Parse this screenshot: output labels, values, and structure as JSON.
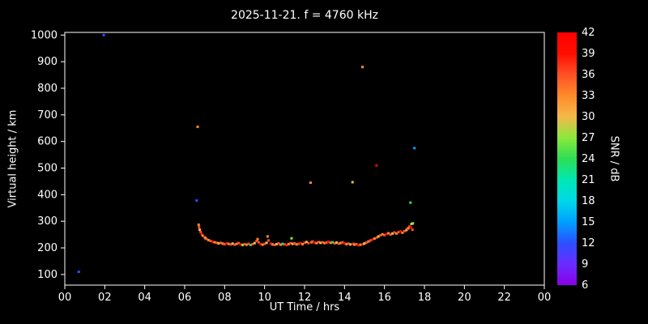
{
  "colors": {
    "background": "#000000",
    "foreground": "#ffffff"
  },
  "chart_data": {
    "type": "scatter",
    "title": "2025-11-21. f = 4760 kHz",
    "xlabel": "UT Time / hrs",
    "ylabel": "Virtual height / km",
    "colorbar_label": "SNR / dB",
    "xlim": [
      0,
      24
    ],
    "ylim": [
      60,
      1010
    ],
    "grid": false,
    "x_ticks": [
      {
        "v": 0,
        "label": "00"
      },
      {
        "v": 2,
        "label": "02"
      },
      {
        "v": 4,
        "label": "04"
      },
      {
        "v": 6,
        "label": "06"
      },
      {
        "v": 8,
        "label": "08"
      },
      {
        "v": 10,
        "label": "10"
      },
      {
        "v": 12,
        "label": "12"
      },
      {
        "v": 14,
        "label": "14"
      },
      {
        "v": 16,
        "label": "16"
      },
      {
        "v": 18,
        "label": "18"
      },
      {
        "v": 20,
        "label": "20"
      },
      {
        "v": 22,
        "label": "22"
      },
      {
        "v": 24,
        "label": "00"
      }
    ],
    "y_ticks": [
      100,
      200,
      300,
      400,
      500,
      600,
      700,
      800,
      900,
      1000
    ],
    "colorbar": {
      "min": 6,
      "max": 42,
      "ticks": [
        6,
        9,
        12,
        15,
        18,
        21,
        24,
        27,
        30,
        33,
        36,
        39,
        42
      ],
      "stops": [
        {
          "v": 6,
          "c": "#8a00e6"
        },
        {
          "v": 9,
          "c": "#6a2bff"
        },
        {
          "v": 12,
          "c": "#2b50ff"
        },
        {
          "v": 15,
          "c": "#00a0ff"
        },
        {
          "v": 18,
          "c": "#00d8e8"
        },
        {
          "v": 21,
          "c": "#00e8b4"
        },
        {
          "v": 24,
          "c": "#2ede55"
        },
        {
          "v": 27,
          "c": "#8ce83c"
        },
        {
          "v": 30,
          "c": "#f4b84a"
        },
        {
          "v": 33,
          "c": "#ff8a2a"
        },
        {
          "v": 36,
          "c": "#ff5026"
        },
        {
          "v": 39,
          "c": "#ff0e00"
        },
        {
          "v": 42,
          "c": "#ff0000"
        }
      ]
    },
    "points_format": [
      "ut_hours",
      "virtual_height_km",
      "snr_db"
    ],
    "points": [
      [
        0.7,
        110,
        12
      ],
      [
        1.95,
        1000,
        12
      ],
      [
        6.6,
        378,
        12
      ],
      [
        6.65,
        655,
        33
      ],
      [
        12.3,
        445,
        33
      ],
      [
        14.4,
        447,
        30
      ],
      [
        14.9,
        880,
        33
      ],
      [
        15.6,
        510,
        42
      ],
      [
        17.3,
        370,
        24
      ],
      [
        17.5,
        575,
        15
      ],
      [
        6.7,
        287,
        33
      ],
      [
        6.72,
        278,
        36
      ],
      [
        6.75,
        268,
        30
      ],
      [
        6.8,
        260,
        36
      ],
      [
        6.85,
        252,
        39
      ],
      [
        6.9,
        246,
        33
      ],
      [
        7.0,
        240,
        36
      ],
      [
        7.05,
        236,
        30
      ],
      [
        7.1,
        233,
        36
      ],
      [
        7.2,
        229,
        33
      ],
      [
        7.3,
        226,
        36
      ],
      [
        7.4,
        223,
        39
      ],
      [
        7.5,
        221,
        33
      ],
      [
        7.6,
        219,
        36
      ],
      [
        7.7,
        217,
        30
      ],
      [
        7.8,
        219,
        36
      ],
      [
        7.9,
        216,
        33
      ],
      [
        8.0,
        214,
        36
      ],
      [
        8.1,
        217,
        39
      ],
      [
        8.2,
        215,
        33
      ],
      [
        8.3,
        213,
        36
      ],
      [
        8.4,
        216,
        30
      ],
      [
        8.5,
        212,
        36
      ],
      [
        8.6,
        215,
        33
      ],
      [
        8.7,
        218,
        36
      ],
      [
        8.8,
        213,
        39
      ],
      [
        8.9,
        211,
        27
      ],
      [
        9.0,
        214,
        36
      ],
      [
        9.1,
        212,
        33
      ],
      [
        9.2,
        215,
        36
      ],
      [
        9.3,
        211,
        24
      ],
      [
        9.4,
        214,
        36
      ],
      [
        9.5,
        218,
        30
      ],
      [
        9.6,
        226,
        36
      ],
      [
        9.65,
        233,
        33
      ],
      [
        9.7,
        221,
        36
      ],
      [
        9.8,
        214,
        39
      ],
      [
        9.9,
        212,
        33
      ],
      [
        10.0,
        215,
        36
      ],
      [
        10.1,
        219,
        30
      ],
      [
        10.15,
        243,
        33
      ],
      [
        10.2,
        228,
        36
      ],
      [
        10.3,
        216,
        39
      ],
      [
        10.4,
        213,
        33
      ],
      [
        10.5,
        211,
        36
      ],
      [
        10.6,
        214,
        30
      ],
      [
        10.7,
        217,
        36
      ],
      [
        10.8,
        212,
        33
      ],
      [
        10.9,
        215,
        21
      ],
      [
        11.0,
        213,
        36
      ],
      [
        11.1,
        211,
        39
      ],
      [
        11.2,
        214,
        33
      ],
      [
        11.3,
        218,
        36
      ],
      [
        11.35,
        236,
        27
      ],
      [
        11.4,
        215,
        30
      ],
      [
        11.5,
        217,
        36
      ],
      [
        11.6,
        213,
        33
      ],
      [
        11.7,
        215,
        36
      ],
      [
        11.8,
        218,
        39
      ],
      [
        11.9,
        214,
        33
      ],
      [
        12.0,
        219,
        36
      ],
      [
        12.1,
        222,
        30
      ],
      [
        12.2,
        218,
        36
      ],
      [
        12.35,
        221,
        33
      ],
      [
        12.4,
        224,
        36
      ],
      [
        12.5,
        220,
        39
      ],
      [
        12.6,
        218,
        33
      ],
      [
        12.7,
        222,
        36
      ],
      [
        12.8,
        219,
        30
      ],
      [
        12.9,
        221,
        36
      ],
      [
        13.0,
        218,
        33
      ],
      [
        13.1,
        220,
        36
      ],
      [
        13.2,
        223,
        39
      ],
      [
        13.3,
        219,
        33
      ],
      [
        13.4,
        221,
        24
      ],
      [
        13.5,
        217,
        36
      ],
      [
        13.6,
        220,
        30
      ],
      [
        13.7,
        216,
        36
      ],
      [
        13.8,
        218,
        33
      ],
      [
        13.9,
        221,
        36
      ],
      [
        14.0,
        217,
        39
      ],
      [
        14.1,
        214,
        33
      ],
      [
        14.2,
        216,
        36
      ],
      [
        14.3,
        213,
        30
      ],
      [
        14.45,
        215,
        36
      ],
      [
        14.5,
        212,
        33
      ],
      [
        14.6,
        214,
        36
      ],
      [
        14.7,
        210,
        39
      ],
      [
        14.8,
        212,
        33
      ],
      [
        14.95,
        214,
        36
      ],
      [
        15.0,
        217,
        30
      ],
      [
        15.1,
        220,
        36
      ],
      [
        15.2,
        224,
        33
      ],
      [
        15.3,
        228,
        36
      ],
      [
        15.4,
        231,
        39
      ],
      [
        15.5,
        235,
        33
      ],
      [
        15.62,
        239,
        36
      ],
      [
        15.7,
        243,
        30
      ],
      [
        15.8,
        247,
        36
      ],
      [
        15.9,
        251,
        33
      ],
      [
        16.0,
        248,
        36
      ],
      [
        16.1,
        252,
        39
      ],
      [
        16.2,
        255,
        33
      ],
      [
        16.3,
        250,
        36
      ],
      [
        16.4,
        254,
        30
      ],
      [
        16.5,
        258,
        36
      ],
      [
        16.6,
        254,
        33
      ],
      [
        16.7,
        259,
        36
      ],
      [
        16.8,
        262,
        39
      ],
      [
        16.9,
        257,
        33
      ],
      [
        17.0,
        263,
        36
      ],
      [
        17.1,
        267,
        30
      ],
      [
        17.15,
        272,
        36
      ],
      [
        17.2,
        274,
        33
      ],
      [
        17.25,
        280,
        36
      ],
      [
        17.32,
        277,
        39
      ],
      [
        17.35,
        290,
        30
      ],
      [
        17.4,
        268,
        36
      ],
      [
        17.42,
        292,
        27
      ]
    ]
  }
}
